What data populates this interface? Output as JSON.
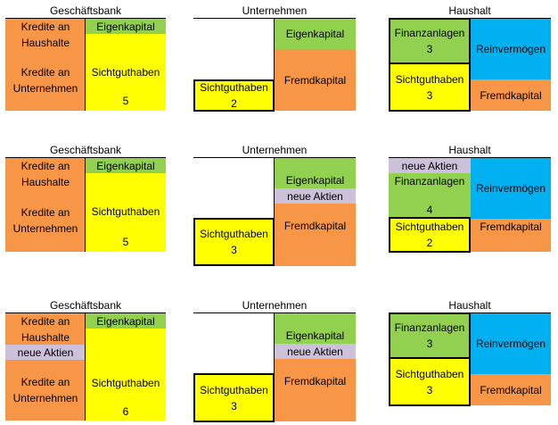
{
  "colors": {
    "orange": "#f79646",
    "green": "#92d050",
    "yellow": "#ffff00",
    "blue": "#00b0f0",
    "purple": "#ccc0da"
  },
  "rows": [
    {
      "bank": {
        "title": "Geschäftsbank",
        "kredite_haushalte": "Kredite an Haushalte",
        "kredite_unternehmen": "Kredite an Unternehmen",
        "eigenkapital": "Eigenkapital",
        "sichtguthaben": "Sichtguthaben",
        "sichtguthaben_value": "5"
      },
      "firm": {
        "title": "Unternehmen",
        "eigenkapital": "Eigenkapital",
        "fremdkapital": "Fremdkapital",
        "sichtguthaben": "Sichtguthaben",
        "sichtguthaben_value": "2"
      },
      "household": {
        "title": "Haushalt",
        "finanzanlagen": "Finanzanlagen",
        "finanzanlagen_value": "3",
        "sichtguthaben": "Sichtguthaben",
        "sichtguthaben_value": "3",
        "reinvermoegen": "Reinvermögen",
        "fremdkapital": "Fremdkapital"
      }
    },
    {
      "bank": {
        "title": "Geschäftsbank",
        "kredite_haushalte": "Kredite an Haushalte",
        "kredite_unternehmen": "Kredite an Unternehmen",
        "eigenkapital": "Eigenkapital",
        "sichtguthaben": "Sichtguthaben",
        "sichtguthaben_value": "5"
      },
      "firm": {
        "title": "Unternehmen",
        "eigenkapital": "Eigenkapital",
        "neue_aktien": "neue Aktien",
        "fremdkapital": "Fremdkapital",
        "sichtguthaben": "Sichtguthaben",
        "sichtguthaben_value": "3"
      },
      "household": {
        "title": "Haushalt",
        "neue_aktien": "neue Aktien",
        "finanzanlagen": "Finanzanlagen",
        "finanzanlagen_value": "4",
        "sichtguthaben": "Sichtguthaben",
        "sichtguthaben_value": "2",
        "reinvermoegen": "Reinvermögen",
        "fremdkapital": "Fremdkapital"
      }
    },
    {
      "bank": {
        "title": "Geschäftsbank",
        "kredite_haushalte": "Kredite an Haushalte",
        "neue_aktien": "neue Aktien",
        "kredite_unternehmen": "Kredite an Unternehmen",
        "eigenkapital": "Eigenkapital",
        "sichtguthaben": "Sichtguthaben",
        "sichtguthaben_value": "6"
      },
      "firm": {
        "title": "Unternehmen",
        "eigenkapital": "Eigenkapital",
        "neue_aktien": "neue Aktien",
        "fremdkapital": "Fremdkapital",
        "sichtguthaben": "Sichtguthaben",
        "sichtguthaben_value": "3"
      },
      "household": {
        "title": "Haushalt",
        "finanzanlagen": "Finanzanlagen",
        "finanzanlagen_value": "3",
        "sichtguthaben": "Sichtguthaben",
        "sichtguthaben_value": "3",
        "reinvermoegen": "Reinvermögen",
        "fremdkapital": "Fremdkapital"
      }
    }
  ]
}
